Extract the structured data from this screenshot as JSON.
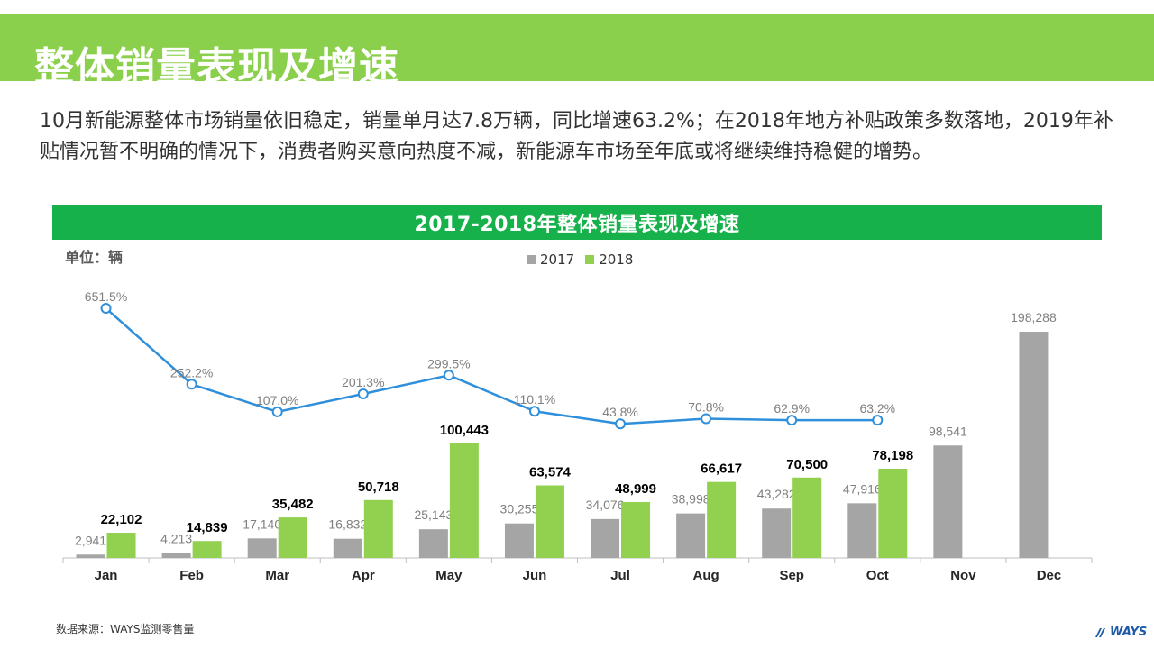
{
  "header": {
    "title": "整体销量表现及增速"
  },
  "summary": "10月新能源整体市场销量依旧稳定，销量单月达7.8万辆，同比增速63.2%；在2018年地方补贴政策多数落地，2019年补贴情况暂不明确的情况下，消费者购买意向热度不减，新能源车市场至年底或将继续维持稳健的增势。",
  "colors": {
    "header_band": "#8bd04c",
    "chart_banner": "#16b14a",
    "series_2017": "#a5a5a5",
    "series_2018": "#92d050",
    "growth_line": "#2f8fdb"
  },
  "chart_data": {
    "type": "bar",
    "title": "2017-2018年整体销量表现及增速",
    "unit_label": "单位：辆",
    "categories": [
      "Jan",
      "Feb",
      "Mar",
      "Apr",
      "May",
      "Jun",
      "Jul",
      "Aug",
      "Sep",
      "Oct",
      "Nov",
      "Dec"
    ],
    "series": [
      {
        "name": "2017",
        "type": "bar",
        "color": "#a5a5a5",
        "values": [
          2941,
          4213,
          17140,
          16832,
          25143,
          30255,
          34076,
          38998,
          43282,
          47916,
          98541,
          198288
        ],
        "labels": [
          "2,941",
          "4,213",
          "17,140",
          "16,832",
          "25,143",
          "30,255",
          "34,076",
          "38,998",
          "43,282",
          "47,916",
          "98,541",
          "198,288"
        ]
      },
      {
        "name": "2018",
        "type": "bar",
        "color": "#92d050",
        "values": [
          22102,
          14839,
          35482,
          50718,
          100443,
          63574,
          48999,
          66617,
          70500,
          78198,
          null,
          null
        ],
        "labels": [
          "22,102",
          "14,839",
          "35,482",
          "50,718",
          "100,443",
          "63,574",
          "48,999",
          "66,617",
          "70,500",
          "78,198",
          "",
          ""
        ]
      },
      {
        "name": "growth",
        "type": "line",
        "color": "#2f8fdb",
        "values": [
          651.5,
          252.2,
          107.0,
          201.3,
          299.5,
          110.1,
          43.8,
          70.8,
          62.9,
          63.2,
          null,
          null
        ],
        "labels": [
          "651.5%",
          "252.2%",
          "107.0%",
          "201.3%",
          "299.5%",
          "110.1%",
          "43.8%",
          "70.8%",
          "62.9%",
          "63.2%",
          "",
          ""
        ]
      }
    ],
    "legend": {
      "position": "top-center",
      "entries": [
        "2017",
        "2018"
      ]
    }
  },
  "footer": {
    "source": "数据来源：WAYS监测零售量",
    "logo": "WAYS"
  }
}
